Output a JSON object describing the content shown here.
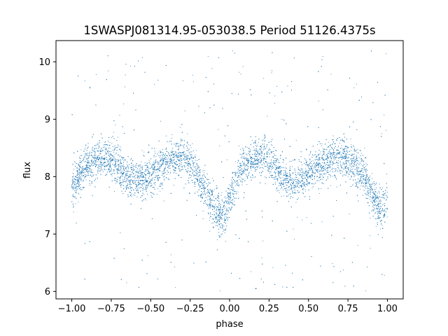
{
  "chart_data": {
    "type": "scatter",
    "title": "1SWASPJ081314.95-053038.5 Period 51126.4375s",
    "xlabel": "phase",
    "ylabel": "flux",
    "xlim": [
      -1.1,
      1.1
    ],
    "ylim": [
      5.87,
      10.37
    ],
    "xticks": [
      -1.0,
      -0.75,
      -0.5,
      -0.25,
      0.0,
      0.25,
      0.5,
      0.75,
      1.0
    ],
    "xtick_labels": [
      "−1.00",
      "−0.75",
      "−0.50",
      "−0.25",
      "0.00",
      "0.25",
      "0.50",
      "0.75",
      "1.00"
    ],
    "yticks": [
      6,
      7,
      8,
      9,
      10
    ],
    "ytick_labels": [
      "6",
      "7",
      "8",
      "9",
      "10"
    ],
    "grid": false,
    "point_color": "#1f77b4",
    "series": [
      {
        "curve": {
          "x": [
            -1.0,
            -0.95,
            -0.9,
            -0.85,
            -0.8,
            -0.75,
            -0.7,
            -0.65,
            -0.6,
            -0.55,
            -0.5,
            -0.45,
            -0.4,
            -0.35,
            -0.3,
            -0.25,
            -0.2,
            -0.15,
            -0.1,
            -0.07,
            -0.05,
            -0.03,
            0.0,
            0.05,
            0.1,
            0.15,
            0.2,
            0.25,
            0.3,
            0.35,
            0.4,
            0.45,
            0.5,
            0.55,
            0.6,
            0.65,
            0.7,
            0.75,
            0.8,
            0.85,
            0.9,
            0.93,
            0.95,
            0.97,
            1.0
          ],
          "y": [
            7.7,
            8.05,
            8.2,
            8.3,
            8.35,
            8.3,
            8.15,
            8.0,
            7.95,
            7.95,
            8.0,
            8.15,
            8.25,
            8.3,
            8.35,
            8.25,
            8.0,
            7.75,
            7.5,
            7.35,
            7.3,
            7.35,
            7.6,
            8.0,
            8.2,
            8.3,
            8.35,
            8.3,
            8.15,
            8.0,
            7.9,
            7.95,
            8.05,
            8.15,
            8.25,
            8.3,
            8.35,
            8.3,
            8.15,
            8.0,
            7.7,
            7.5,
            7.4,
            7.4,
            7.6
          ]
        },
        "point_count": 9000,
        "scatter_sigma": 0.17,
        "outlier_fraction": 0.06,
        "outlier_range": [
          6.0,
          10.2
        ]
      }
    ]
  }
}
